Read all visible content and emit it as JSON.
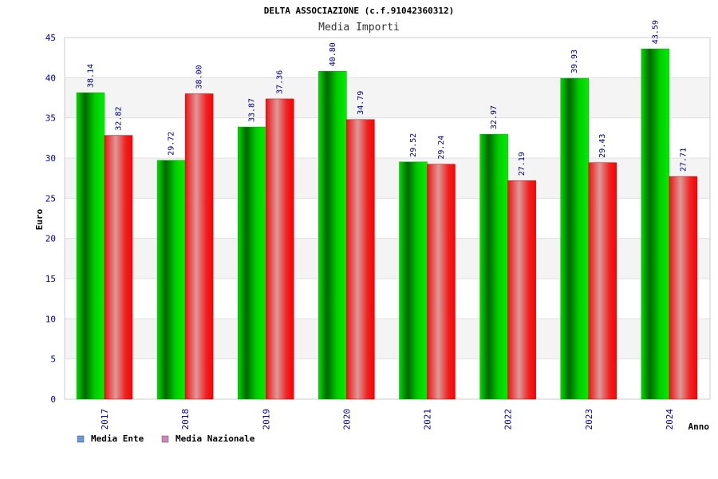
{
  "chart_data": {
    "type": "bar",
    "title": "DELTA ASSOCIAZIONE (c.f.91042360312)",
    "subtitle": "Media Importi",
    "xlabel": "Anno",
    "ylabel": "Euro",
    "ylim": [
      0,
      45
    ],
    "yticks": [
      0,
      5,
      10,
      15,
      20,
      25,
      30,
      35,
      40,
      45
    ],
    "categories": [
      "2017",
      "2018",
      "2019",
      "2020",
      "2021",
      "2022",
      "2023",
      "2024"
    ],
    "grid": true,
    "legend_position": "bottom-left",
    "series": [
      {
        "name": "Media Ente",
        "color": "#00c000",
        "legend_color": "#6699dd",
        "values": [
          38.14,
          29.72,
          33.87,
          40.8,
          29.52,
          32.97,
          39.93,
          43.59
        ],
        "labels": [
          "38.14",
          "29.72",
          "33.87",
          "40.80",
          "29.52",
          "32.97",
          "39.93",
          "43.59"
        ]
      },
      {
        "name": "Media Nazionale",
        "color": "#ee1111",
        "legend_color": "#cc88bb",
        "values": [
          32.82,
          38.0,
          37.36,
          34.79,
          29.24,
          27.19,
          29.43,
          27.71
        ],
        "labels": [
          "32.82",
          "38.00",
          "37.36",
          "34.79",
          "29.24",
          "27.19",
          "29.43",
          "27.71"
        ]
      }
    ]
  }
}
